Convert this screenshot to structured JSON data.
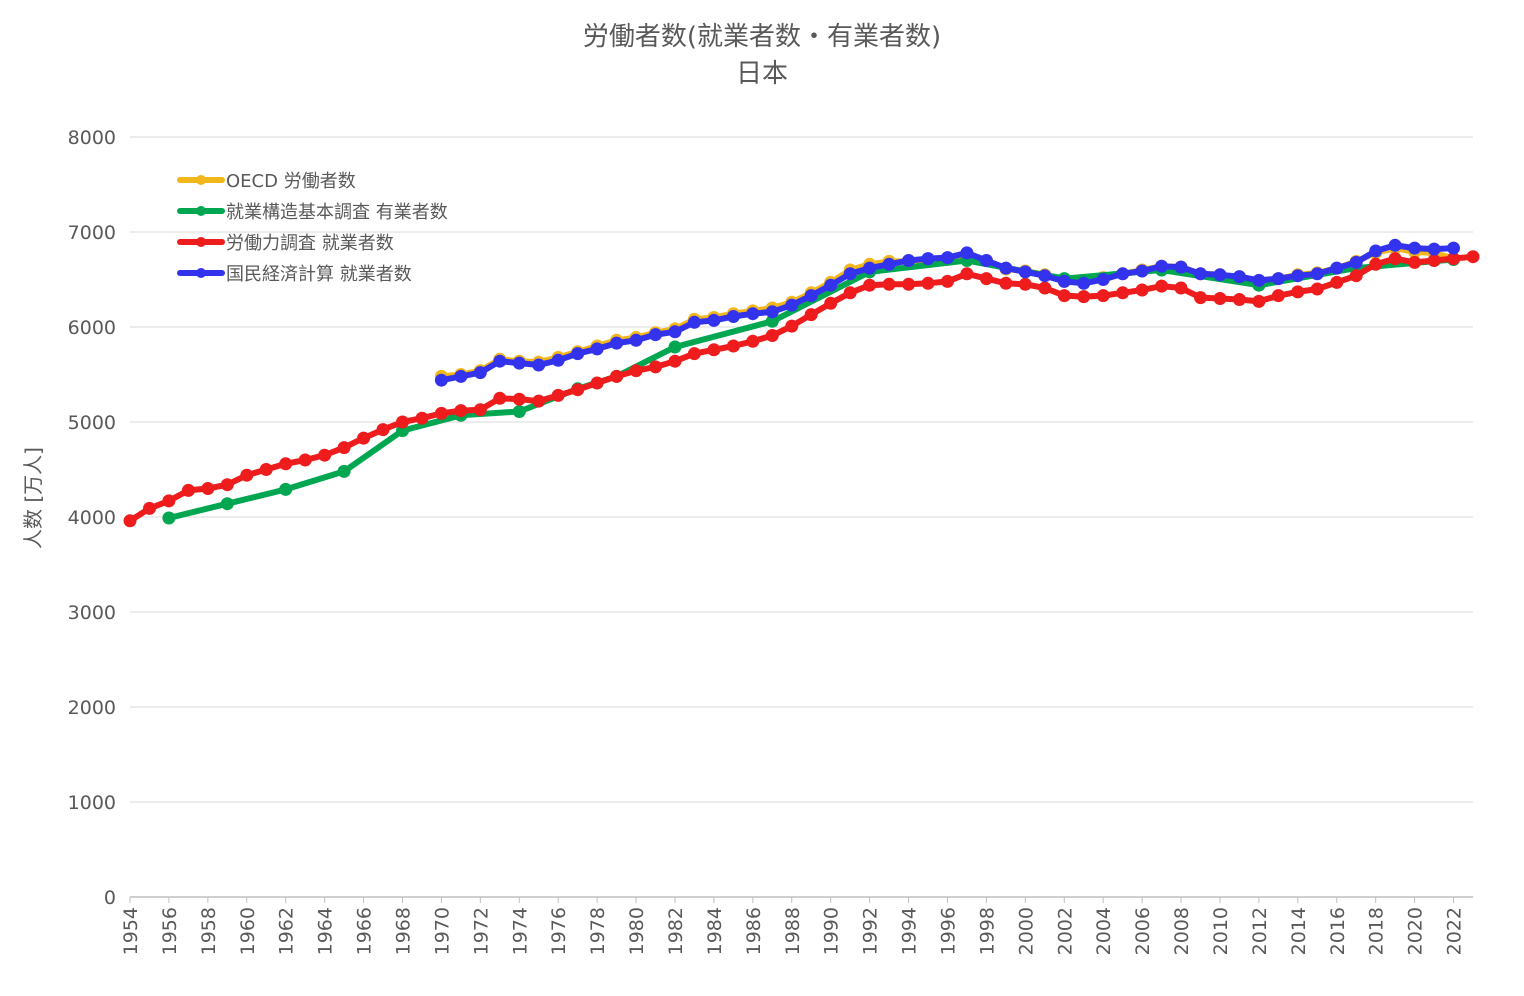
{
  "chart_data": {
    "type": "line",
    "title": "労働者数(就業者数・有業者数)",
    "subtitle": "日本",
    "ylabel": "人数 [万人]",
    "xlabel": "",
    "ylim": [
      0,
      8000
    ],
    "yticks": [
      0,
      1000,
      2000,
      3000,
      4000,
      5000,
      6000,
      7000,
      8000
    ],
    "xlim": [
      1954,
      2023
    ],
    "xticks": [
      1954,
      1956,
      1958,
      1960,
      1962,
      1964,
      1966,
      1968,
      1970,
      1972,
      1974,
      1976,
      1978,
      1980,
      1982,
      1984,
      1986,
      1988,
      1990,
      1992,
      1994,
      1996,
      1998,
      2000,
      2002,
      2004,
      2006,
      2008,
      2010,
      2012,
      2014,
      2016,
      2018,
      2020,
      2022
    ],
    "grid": true,
    "legend_position": "top-left",
    "series": [
      {
        "name": "OECD 労働者数",
        "color": "#F2B71B",
        "points": [
          [
            1970,
            5480
          ],
          [
            1971,
            5500
          ],
          [
            1972,
            5540
          ],
          [
            1973,
            5660
          ],
          [
            1974,
            5640
          ],
          [
            1975,
            5630
          ],
          [
            1976,
            5680
          ],
          [
            1977,
            5740
          ],
          [
            1978,
            5800
          ],
          [
            1979,
            5860
          ],
          [
            1980,
            5890
          ],
          [
            1981,
            5940
          ],
          [
            1982,
            5980
          ],
          [
            1983,
            6080
          ],
          [
            1984,
            6100
          ],
          [
            1985,
            6140
          ],
          [
            1986,
            6170
          ],
          [
            1987,
            6200
          ],
          [
            1988,
            6260
          ],
          [
            1989,
            6360
          ],
          [
            1990,
            6470
          ],
          [
            1991,
            6600
          ],
          [
            1992,
            6660
          ],
          [
            1993,
            6690
          ],
          [
            1994,
            6690
          ],
          [
            1995,
            6690
          ],
          [
            1996,
            6710
          ],
          [
            1997,
            6760
          ],
          [
            1998,
            6700
          ],
          [
            1999,
            6610
          ],
          [
            2000,
            6590
          ],
          [
            2001,
            6550
          ],
          [
            2002,
            6480
          ],
          [
            2003,
            6470
          ],
          [
            2004,
            6520
          ],
          [
            2005,
            6560
          ],
          [
            2006,
            6600
          ],
          [
            2007,
            6640
          ],
          [
            2008,
            6630
          ],
          [
            2009,
            6560
          ],
          [
            2010,
            6550
          ],
          [
            2011,
            6520
          ],
          [
            2012,
            6480
          ],
          [
            2013,
            6510
          ],
          [
            2014,
            6550
          ],
          [
            2015,
            6570
          ],
          [
            2016,
            6620
          ],
          [
            2017,
            6690
          ],
          [
            2018,
            6780
          ],
          [
            2019,
            6830
          ],
          [
            2020,
            6790
          ],
          [
            2021,
            6780
          ],
          [
            2022,
            6720
          ]
        ]
      },
      {
        "name": "就業構造基本調査 有業者数",
        "color": "#00A650",
        "points": [
          [
            1956,
            3990
          ],
          [
            1959,
            4140
          ],
          [
            1962,
            4290
          ],
          [
            1965,
            4480
          ],
          [
            1968,
            4910
          ],
          [
            1971,
            5070
          ],
          [
            1974,
            5110
          ],
          [
            1977,
            5350
          ],
          [
            1979,
            5480
          ],
          [
            1982,
            5790
          ],
          [
            1987,
            6060
          ],
          [
            1992,
            6580
          ],
          [
            1997,
            6700
          ],
          [
            2002,
            6510
          ],
          [
            2007,
            6600
          ],
          [
            2012,
            6440
          ],
          [
            2017,
            6620
          ],
          [
            2022,
            6710
          ]
        ]
      },
      {
        "name": "労働力調査 就業者数",
        "color": "#EE1C1C",
        "points": [
          [
            1954,
            3960
          ],
          [
            1955,
            4090
          ],
          [
            1956,
            4170
          ],
          [
            1957,
            4280
          ],
          [
            1958,
            4300
          ],
          [
            1959,
            4340
          ],
          [
            1960,
            4440
          ],
          [
            1961,
            4500
          ],
          [
            1962,
            4560
          ],
          [
            1963,
            4600
          ],
          [
            1964,
            4650
          ],
          [
            1965,
            4730
          ],
          [
            1966,
            4830
          ],
          [
            1967,
            4920
          ],
          [
            1968,
            5000
          ],
          [
            1969,
            5040
          ],
          [
            1970,
            5090
          ],
          [
            1971,
            5120
          ],
          [
            1972,
            5130
          ],
          [
            1973,
            5250
          ],
          [
            1974,
            5240
          ],
          [
            1975,
            5220
          ],
          [
            1976,
            5280
          ],
          [
            1977,
            5340
          ],
          [
            1978,
            5410
          ],
          [
            1979,
            5480
          ],
          [
            1980,
            5540
          ],
          [
            1981,
            5580
          ],
          [
            1982,
            5640
          ],
          [
            1983,
            5720
          ],
          [
            1984,
            5760
          ],
          [
            1985,
            5800
          ],
          [
            1986,
            5850
          ],
          [
            1987,
            5910
          ],
          [
            1988,
            6010
          ],
          [
            1989,
            6130
          ],
          [
            1990,
            6250
          ],
          [
            1991,
            6360
          ],
          [
            1992,
            6440
          ],
          [
            1993,
            6450
          ],
          [
            1994,
            6450
          ],
          [
            1995,
            6460
          ],
          [
            1996,
            6480
          ],
          [
            1997,
            6560
          ],
          [
            1998,
            6510
          ],
          [
            1999,
            6460
          ],
          [
            2000,
            6450
          ],
          [
            2001,
            6410
          ],
          [
            2002,
            6330
          ],
          [
            2003,
            6320
          ],
          [
            2004,
            6330
          ],
          [
            2005,
            6360
          ],
          [
            2006,
            6390
          ],
          [
            2007,
            6430
          ],
          [
            2008,
            6410
          ],
          [
            2009,
            6310
          ],
          [
            2010,
            6300
          ],
          [
            2011,
            6290
          ],
          [
            2012,
            6270
          ],
          [
            2013,
            6330
          ],
          [
            2014,
            6370
          ],
          [
            2015,
            6400
          ],
          [
            2016,
            6470
          ],
          [
            2017,
            6540
          ],
          [
            2018,
            6660
          ],
          [
            2019,
            6720
          ],
          [
            2020,
            6680
          ],
          [
            2021,
            6700
          ],
          [
            2022,
            6720
          ],
          [
            2023,
            6740
          ]
        ]
      },
      {
        "name": "国民経済計算 就業者数",
        "color": "#3333EE",
        "points": [
          [
            1970,
            5440
          ],
          [
            1971,
            5480
          ],
          [
            1972,
            5520
          ],
          [
            1973,
            5640
          ],
          [
            1974,
            5620
          ],
          [
            1975,
            5600
          ],
          [
            1976,
            5650
          ],
          [
            1977,
            5720
          ],
          [
            1978,
            5770
          ],
          [
            1979,
            5830
          ],
          [
            1980,
            5860
          ],
          [
            1981,
            5920
          ],
          [
            1982,
            5950
          ],
          [
            1983,
            6050
          ],
          [
            1984,
            6070
          ],
          [
            1985,
            6110
          ],
          [
            1986,
            6140
          ],
          [
            1987,
            6160
          ],
          [
            1988,
            6230
          ],
          [
            1989,
            6330
          ],
          [
            1990,
            6440
          ],
          [
            1991,
            6560
          ],
          [
            1992,
            6620
          ],
          [
            1993,
            6660
          ],
          [
            1994,
            6700
          ],
          [
            1995,
            6720
          ],
          [
            1996,
            6730
          ],
          [
            1997,
            6780
          ],
          [
            1998,
            6700
          ],
          [
            1999,
            6620
          ],
          [
            2000,
            6580
          ],
          [
            2001,
            6540
          ],
          [
            2002,
            6480
          ],
          [
            2003,
            6460
          ],
          [
            2004,
            6500
          ],
          [
            2005,
            6560
          ],
          [
            2006,
            6590
          ],
          [
            2007,
            6640
          ],
          [
            2008,
            6630
          ],
          [
            2009,
            6560
          ],
          [
            2010,
            6550
          ],
          [
            2011,
            6530
          ],
          [
            2012,
            6490
          ],
          [
            2013,
            6510
          ],
          [
            2014,
            6540
          ],
          [
            2015,
            6560
          ],
          [
            2016,
            6620
          ],
          [
            2017,
            6680
          ],
          [
            2018,
            6800
          ],
          [
            2019,
            6860
          ],
          [
            2020,
            6830
          ],
          [
            2021,
            6820
          ],
          [
            2022,
            6830
          ]
        ]
      }
    ]
  }
}
